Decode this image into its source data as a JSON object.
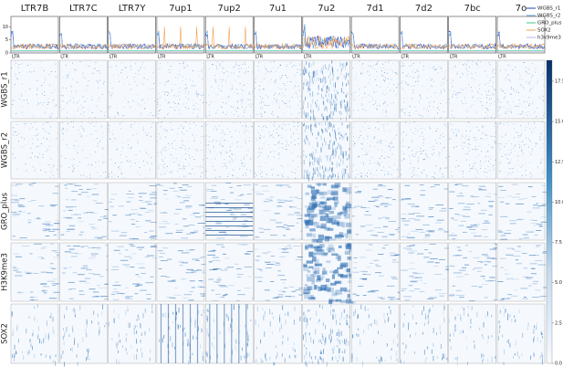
{
  "figure": {
    "columns": [
      "LTR7B",
      "LTR7C",
      "LTR7Y",
      "7up1",
      "7up2",
      "7u1",
      "7u2",
      "7d1",
      "7d2",
      "7bc",
      "7o"
    ],
    "region_label": "LTR",
    "rows": [
      "WGBS_r1",
      "WGBS_r2",
      "GRO_plus",
      "H3K9me3",
      "SOX2"
    ],
    "profile_ylim": [
      0,
      14
    ],
    "profile_yticks": [
      0,
      5,
      10
    ],
    "legend": [
      {
        "name": "WGBS_r1",
        "color": "#1f3fbf"
      },
      {
        "name": "WGBS_r2",
        "color": "#6aa7e0"
      },
      {
        "name": "GRO_plus",
        "color": "#3fc98a"
      },
      {
        "name": "SOX2",
        "color": "#f0a050"
      },
      {
        "name": "h3k9me3",
        "color": "#b9b4e8"
      }
    ],
    "colorbar_lim": [
      0,
      18.8
    ],
    "colorbar_ticks": [
      {
        "value": 0,
        "label": "0.0"
      },
      {
        "value": 2.5,
        "label": "2.5"
      },
      {
        "value": 5,
        "label": "5.0"
      },
      {
        "value": 7.5,
        "label": "7.5"
      },
      {
        "value": 10,
        "label": "10.0"
      },
      {
        "value": 12.5,
        "label": "12.5"
      },
      {
        "value": 15,
        "label": "15.0"
      },
      {
        "value": 17.5,
        "label": "17.5"
      }
    ]
  }
}
